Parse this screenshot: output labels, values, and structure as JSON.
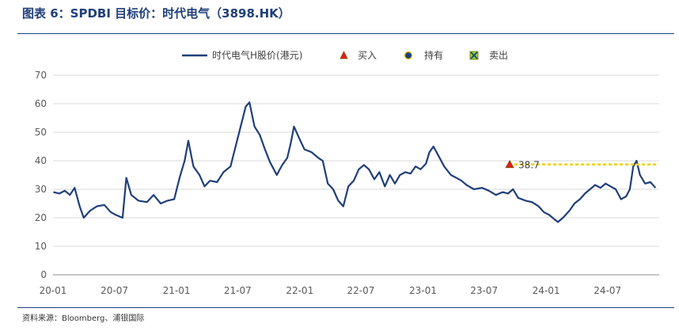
{
  "header": {
    "title": "图表 6：SPDBI 目标价：时代电气（3898.HK）"
  },
  "footer": {
    "source": "资料来源：Bloomberg、浦银国际"
  },
  "colors": {
    "line": "#1f3f7a",
    "buy": "#e8181e",
    "hold": "#1f3f7a",
    "sell": "#9acd32",
    "target": "#f2d200",
    "grid": "#d9d9d9"
  },
  "legend": {
    "items": [
      {
        "label": "时代电气H股价(港元)",
        "icon": "line-swatch-icon"
      },
      {
        "label": "买入",
        "icon": "triangle-icon"
      },
      {
        "label": "持有",
        "icon": "circle-icon"
      },
      {
        "label": "卖出",
        "icon": "x-square-icon"
      }
    ]
  },
  "chart_data": {
    "type": "line",
    "title": "",
    "xlabel": "",
    "ylabel": "",
    "ylim": [
      0,
      70
    ],
    "yticks": [
      0,
      10,
      20,
      30,
      40,
      50,
      60,
      70
    ],
    "xticks": [
      "20-01",
      "20-07",
      "21-01",
      "21-07",
      "22-01",
      "22-07",
      "23-01",
      "23-07",
      "24-01",
      "24-07"
    ],
    "grid": true,
    "legend_position": "top",
    "series": [
      {
        "name": "时代电气H股价(港元)",
        "points": [
          [
            "2020-01-02",
            29.0
          ],
          [
            "2020-01-20",
            28.5
          ],
          [
            "2020-02-05",
            29.5
          ],
          [
            "2020-02-20",
            28.0
          ],
          [
            "2020-03-05",
            30.5
          ],
          [
            "2020-03-20",
            24.0
          ],
          [
            "2020-04-01",
            20.0
          ],
          [
            "2020-04-20",
            22.5
          ],
          [
            "2020-05-10",
            24.0
          ],
          [
            "2020-06-01",
            24.5
          ],
          [
            "2020-06-20",
            22.0
          ],
          [
            "2020-07-05",
            21.0
          ],
          [
            "2020-07-25",
            20.0
          ],
          [
            "2020-08-05",
            34.0
          ],
          [
            "2020-08-20",
            28.0
          ],
          [
            "2020-09-10",
            26.0
          ],
          [
            "2020-10-05",
            25.5
          ],
          [
            "2020-10-25",
            28.0
          ],
          [
            "2020-11-15",
            25.0
          ],
          [
            "2020-12-05",
            26.0
          ],
          [
            "2020-12-25",
            26.5
          ],
          [
            "2021-01-10",
            34.0
          ],
          [
            "2021-01-25",
            40.0
          ],
          [
            "2021-02-05",
            47.0
          ],
          [
            "2021-02-20",
            38.0
          ],
          [
            "2021-03-10",
            35.0
          ],
          [
            "2021-03-25",
            31.0
          ],
          [
            "2021-04-10",
            33.0
          ],
          [
            "2021-05-01",
            32.5
          ],
          [
            "2021-05-20",
            36.0
          ],
          [
            "2021-06-10",
            38.0
          ],
          [
            "2021-06-25",
            45.0
          ],
          [
            "2021-07-10",
            52.0
          ],
          [
            "2021-07-25",
            59.0
          ],
          [
            "2021-08-05",
            60.5
          ],
          [
            "2021-08-20",
            52.0
          ],
          [
            "2021-09-05",
            49.0
          ],
          [
            "2021-09-20",
            44.0
          ],
          [
            "2021-10-05",
            39.5
          ],
          [
            "2021-10-25",
            35.0
          ],
          [
            "2021-11-10",
            38.5
          ],
          [
            "2021-11-25",
            41.0
          ],
          [
            "2021-12-05",
            46.0
          ],
          [
            "2021-12-15",
            52.0
          ],
          [
            "2021-12-30",
            48.0
          ],
          [
            "2022-01-15",
            44.0
          ],
          [
            "2022-02-05",
            43.0
          ],
          [
            "2022-02-25",
            41.0
          ],
          [
            "2022-03-10",
            40.0
          ],
          [
            "2022-03-25",
            32.0
          ],
          [
            "2022-04-10",
            30.0
          ],
          [
            "2022-04-25",
            26.0
          ],
          [
            "2022-05-10",
            24.0
          ],
          [
            "2022-05-25",
            31.0
          ],
          [
            "2022-06-10",
            33.0
          ],
          [
            "2022-06-25",
            37.0
          ],
          [
            "2022-07-10",
            38.5
          ],
          [
            "2022-07-25",
            37.0
          ],
          [
            "2022-08-10",
            33.5
          ],
          [
            "2022-08-25",
            36.0
          ],
          [
            "2022-09-10",
            31.0
          ],
          [
            "2022-09-25",
            35.0
          ],
          [
            "2022-10-10",
            32.0
          ],
          [
            "2022-10-25",
            35.0
          ],
          [
            "2022-11-10",
            36.0
          ],
          [
            "2022-11-25",
            35.5
          ],
          [
            "2022-12-10",
            38.0
          ],
          [
            "2022-12-25",
            37.0
          ],
          [
            "2023-01-10",
            39.0
          ],
          [
            "2023-01-20",
            43.0
          ],
          [
            "2023-02-01",
            45.0
          ],
          [
            "2023-02-15",
            42.0
          ],
          [
            "2023-03-05",
            38.0
          ],
          [
            "2023-03-25",
            35.0
          ],
          [
            "2023-04-10",
            34.0
          ],
          [
            "2023-04-25",
            33.0
          ],
          [
            "2023-05-10",
            31.5
          ],
          [
            "2023-06-01",
            30.0
          ],
          [
            "2023-06-25",
            30.5
          ],
          [
            "2023-07-15",
            29.5
          ],
          [
            "2023-08-05",
            28.0
          ],
          [
            "2023-08-25",
            29.0
          ],
          [
            "2023-09-10",
            28.5
          ],
          [
            "2023-09-25",
            30.0
          ],
          [
            "2023-10-10",
            27.0
          ],
          [
            "2023-11-01",
            26.0
          ],
          [
            "2023-11-20",
            25.5
          ],
          [
            "2023-12-10",
            24.0
          ],
          [
            "2023-12-25",
            22.0
          ],
          [
            "2024-01-10",
            21.0
          ],
          [
            "2024-01-25",
            19.5
          ],
          [
            "2024-02-05",
            18.5
          ],
          [
            "2024-02-20",
            20.0
          ],
          [
            "2024-03-10",
            22.5
          ],
          [
            "2024-03-25",
            25.0
          ],
          [
            "2024-04-10",
            26.5
          ],
          [
            "2024-04-25",
            28.5
          ],
          [
            "2024-05-10",
            30.0
          ],
          [
            "2024-05-25",
            31.5
          ],
          [
            "2024-06-10",
            30.5
          ],
          [
            "2024-06-25",
            32.0
          ],
          [
            "2024-07-10",
            31.0
          ],
          [
            "2024-07-25",
            30.0
          ],
          [
            "2024-08-10",
            26.5
          ],
          [
            "2024-08-25",
            27.5
          ],
          [
            "2024-09-05",
            30.0
          ],
          [
            "2024-09-15",
            38.0
          ],
          [
            "2024-09-25",
            40.0
          ],
          [
            "2024-10-05",
            35.0
          ],
          [
            "2024-10-20",
            32.0
          ],
          [
            "2024-11-05",
            32.5
          ],
          [
            "2024-11-20",
            30.5
          ]
        ]
      }
    ],
    "ratings": [
      {
        "date": "2023-09-15",
        "rating": "买入",
        "target_price": 38.7
      }
    ],
    "target_line": {
      "from": "2023-09-15",
      "to": "2024-11-20",
      "value": 38.7
    },
    "annotation": {
      "label": "38.7"
    }
  }
}
